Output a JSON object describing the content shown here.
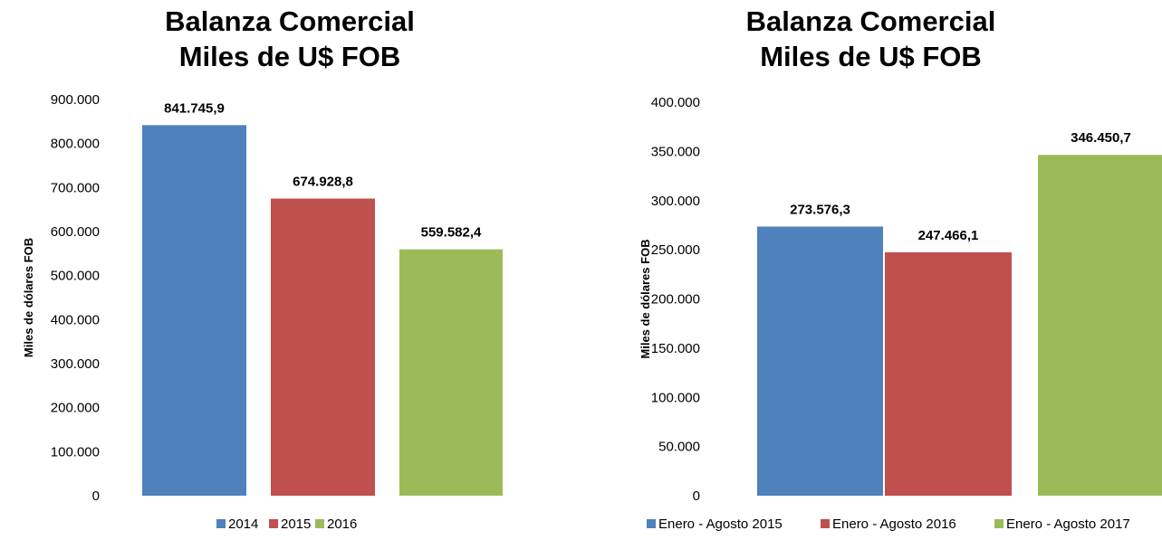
{
  "chart_data": [
    {
      "type": "bar",
      "title": [
        "Balanza Comercial",
        "Miles de U$ FOB"
      ],
      "ylabel": "Miles de dólares FOB",
      "xlabel": "",
      "ylim": [
        0,
        900000
      ],
      "yticks": [
        "0",
        "100.000",
        "200.000",
        "300.000",
        "400.000",
        "500.000",
        "600.000",
        "700.000",
        "800.000",
        "900.000"
      ],
      "grid": false,
      "legend_position": "bottom",
      "categories": [
        "2014",
        "2015",
        "2016"
      ],
      "values": [
        841745.9,
        674928.8,
        559582.4
      ],
      "data_labels": [
        "841.745,9",
        "674.928,8",
        "559.582,4"
      ],
      "colors": [
        "#4F81BD",
        "#C0504D",
        "#9BBB59"
      ]
    },
    {
      "type": "bar",
      "title": [
        "Balanza Comercial",
        "Miles de U$ FOB"
      ],
      "ylabel": "Miles de dólares FOB",
      "xlabel": "",
      "ylim": [
        0,
        400000
      ],
      "yticks": [
        "0",
        "50.000",
        "100.000",
        "150.000",
        "200.000",
        "250.000",
        "300.000",
        "350.000",
        "400.000"
      ],
      "grid": false,
      "legend_position": "bottom",
      "categories": [
        "Enero - Agosto 2015",
        "Enero - Agosto 2016",
        "Enero - Agosto 2017"
      ],
      "values": [
        273576.3,
        247466.1,
        346450.7
      ],
      "data_labels": [
        "273.576,3",
        "247.466,1",
        "346.450,7"
      ],
      "colors": [
        "#4F81BD",
        "#C0504D",
        "#9BBB59"
      ]
    }
  ]
}
